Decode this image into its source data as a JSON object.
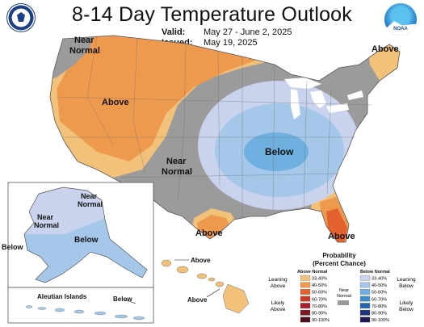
{
  "header": {
    "title": "8-14 Day Temperature Outlook",
    "valid_label": "Valid:",
    "valid_value": "May 27 - June 2, 2025",
    "issued_label": "Issued:",
    "issued_value": "May 19, 2025",
    "noaa_text": "NOAA"
  },
  "map_labels": {
    "near_normal_nw_1": "Near",
    "near_normal_nw_2": "Normal",
    "above_ne": "Above",
    "above_west": "Above",
    "below_central": "Below",
    "near_normal_center_1": "Near",
    "near_normal_center_2": "Normal",
    "above_south": "Above",
    "above_fl": "Above",
    "ak_near_normal_1": "Near",
    "ak_near_normal_2": "Normal",
    "ak_near_normal_w_1": "Near",
    "ak_near_normal_w_2": "Normal",
    "ak_below": "Below",
    "ak_below_w": "Below",
    "aleutian_label": "Aleutian Islands",
    "aleutian_below": "Below",
    "hi_above_1": "Above",
    "hi_above_2": "Above"
  },
  "legend": {
    "title_1": "Probability",
    "title_2": "(Percent Chance)",
    "above_header": "Above Normal",
    "below_header": "Below Normal",
    "leaning_above_1": "Leaning",
    "leaning_above_2": "Above",
    "likely_above_1": "Likely",
    "likely_above_2": "Above",
    "near_normal_1": "Near",
    "near_normal_2": "Normal",
    "leaning_below_1": "Leaning",
    "leaning_below_2": "Below",
    "likely_below_1": "Likely",
    "likely_below_2": "Below",
    "above_bins": [
      {
        "label": "33-40%",
        "color": "#f2c27a"
      },
      {
        "label": "40-50%",
        "color": "#ee9a4e"
      },
      {
        "label": "50-60%",
        "color": "#e4622d"
      },
      {
        "label": "60-70%",
        "color": "#cc3a24"
      },
      {
        "label": "70-80%",
        "color": "#a7202a"
      },
      {
        "label": "80-90%",
        "color": "#7c1724"
      },
      {
        "label": "90-100%",
        "color": "#4d0f1a"
      }
    ],
    "below_bins": [
      {
        "label": "33-40%",
        "color": "#c9d3ee"
      },
      {
        "label": "40-50%",
        "color": "#a4c7ea"
      },
      {
        "label": "50-60%",
        "color": "#6fb0e0"
      },
      {
        "label": "60-70%",
        "color": "#3f8ccb"
      },
      {
        "label": "70-80%",
        "color": "#2265ae"
      },
      {
        "label": "80-90%",
        "color": "#20347e"
      },
      {
        "label": "90-100%",
        "color": "#1d1b55"
      }
    ],
    "near_normal_color": "#9a9a9a"
  }
}
